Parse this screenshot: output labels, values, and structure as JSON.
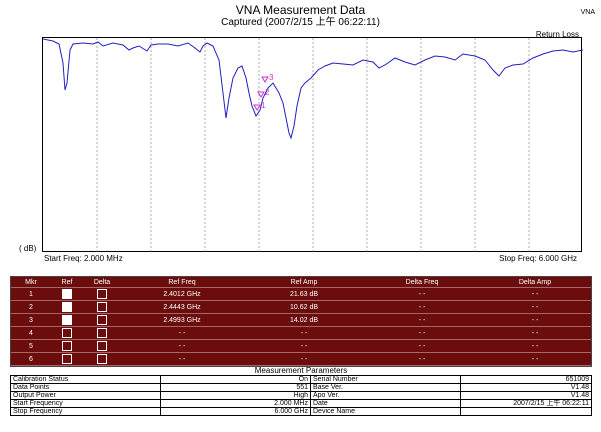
{
  "header": {
    "title": "VNA Measurement Data",
    "subtitle": "Captured (2007/2/15 上午 06:22:11)",
    "corner": "VNA"
  },
  "plot": {
    "trace_label": "Return Loss",
    "y_unit": "( dB)",
    "start_freq": "Start Freq: 2.000 MHz",
    "stop_freq": "Stop Freq: 6.000 GHz",
    "markers": [
      "1",
      "2",
      "3"
    ],
    "trace_color": "#2020c0",
    "marker_color": "#cc33cc"
  },
  "chart_data": {
    "type": "line",
    "title": "VNA Measurement Data",
    "series": [
      {
        "name": "Return Loss"
      }
    ],
    "xlim": [
      0.002,
      6.0
    ],
    "x_unit": "GHz",
    "y_unit": "dB",
    "grid": true,
    "markers": [
      {
        "id": 1,
        "x": 2.4012,
        "y": 21.63
      },
      {
        "id": 2,
        "x": 2.4443,
        "y": 10.62
      },
      {
        "id": 3,
        "x": 2.4993,
        "y": 14.02
      }
    ]
  },
  "marker_table": {
    "headers": [
      "Mkr",
      "Ref",
      "Delta",
      "Ref Freq",
      "Ref Amp",
      "Delta Freq",
      "Delta Amp"
    ],
    "rows": [
      {
        "mkr": "1",
        "ref": true,
        "delta": false,
        "ref_freq": "2.4012 GHz",
        "ref_amp": "21.63 dB",
        "delta_freq": "- -",
        "delta_amp": "- -"
      },
      {
        "mkr": "2",
        "ref": true,
        "delta": false,
        "ref_freq": "2.4443 GHz",
        "ref_amp": "10.62 dB",
        "delta_freq": "- -",
        "delta_amp": "- -"
      },
      {
        "mkr": "3",
        "ref": true,
        "delta": false,
        "ref_freq": "2.4993 GHz",
        "ref_amp": "14.02 dB",
        "delta_freq": "- -",
        "delta_amp": "- -"
      },
      {
        "mkr": "4",
        "ref": false,
        "delta": false,
        "ref_freq": "- -",
        "ref_amp": "- -",
        "delta_freq": "- -",
        "delta_amp": "- -"
      },
      {
        "mkr": "5",
        "ref": false,
        "delta": false,
        "ref_freq": "- -",
        "ref_amp": "- -",
        "delta_freq": "- -",
        "delta_amp": "- -"
      },
      {
        "mkr": "6",
        "ref": false,
        "delta": false,
        "ref_freq": "- -",
        "ref_amp": "- -",
        "delta_freq": "- -",
        "delta_amp": "- -"
      }
    ]
  },
  "params": {
    "title": "Measurement Parameters",
    "rows": [
      {
        "k1": "Calibration Status",
        "v1": "On",
        "k2": "Serial Number",
        "v2": "651009"
      },
      {
        "k1": "Data Points",
        "v1": "551",
        "k2": "Base Ver.",
        "v2": "V1.48"
      },
      {
        "k1": "Output Power",
        "v1": "High",
        "k2": "Apo Ver.",
        "v2": "V1.48"
      },
      {
        "k1": "Start Frequency",
        "v1": "2.000 MHz",
        "k2": "Date",
        "v2": "2007/2/15 上午 06:22:11"
      },
      {
        "k1": "Stop Frequency",
        "v1": "6.000 GHz",
        "k2": "Device Name",
        "v2": ""
      }
    ]
  }
}
